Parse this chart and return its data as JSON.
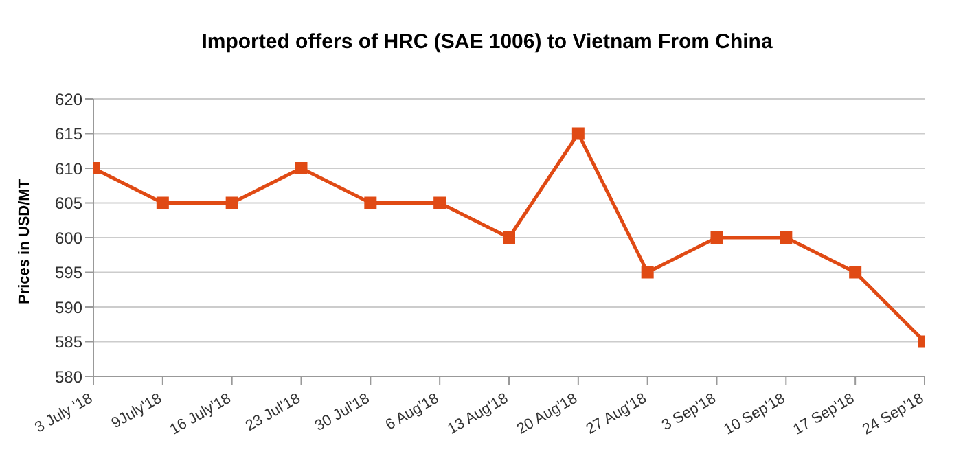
{
  "chart_data": {
    "type": "line",
    "title": "Imported offers of HRC (SAE 1006) to Vietnam From China",
    "ylabel": "Prices in USD/MT",
    "categories": [
      "3 July '18",
      "9July'18",
      "16 July'18",
      "23 Jul'18",
      "30 Jul'18",
      "6 Aug'18",
      "13 Aug'18",
      "20 Aug'18",
      "27 Aug'18",
      "3 Sep'18",
      "10 Sep'18",
      "17 Sep'18",
      "24 Sep'18"
    ],
    "series": [
      {
        "color": "#e04a14",
        "values": [
          610,
          605,
          605,
          610,
          605,
          605,
          600,
          615,
          595,
          600,
          600,
          595,
          585
        ]
      }
    ],
    "ylim": [
      580,
      620
    ],
    "yticks": [
      580,
      585,
      590,
      595,
      600,
      605,
      610,
      615,
      620
    ],
    "grid": "y",
    "marker": "square",
    "line_style": "solid",
    "legend": false
  }
}
